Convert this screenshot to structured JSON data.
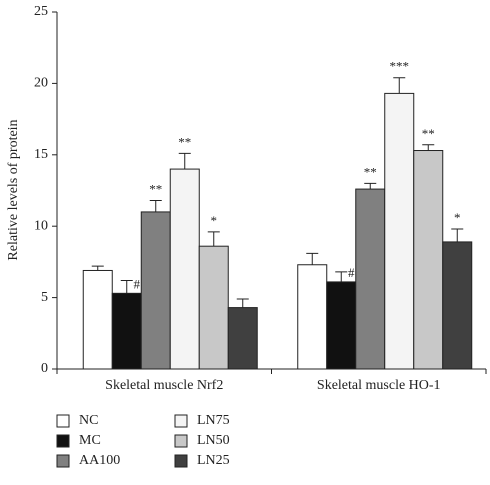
{
  "chart_data": {
    "type": "bar",
    "y_label": "Relative levels of protein",
    "categories": [
      "Skeletal muscle Nrf2",
      "Skeletal muscle HO-1"
    ],
    "ylim": [
      0,
      25
    ],
    "yticks": [
      0,
      5,
      10,
      15,
      20,
      25
    ],
    "series": [
      {
        "name": "NC",
        "color": "#ffffff",
        "values": [
          6.9,
          7.3
        ],
        "errors": [
          0.3,
          0.8
        ],
        "annotations": [
          null,
          null
        ]
      },
      {
        "name": "MC",
        "color": "#111111",
        "values": [
          5.3,
          6.1
        ],
        "errors": [
          0.9,
          0.7
        ],
        "annotations": [
          "#",
          "#"
        ]
      },
      {
        "name": "AA100",
        "color": "#808080",
        "values": [
          11.0,
          12.6
        ],
        "errors": [
          0.8,
          0.4
        ],
        "annotations": [
          "**",
          "**"
        ]
      },
      {
        "name": "LN75",
        "color": "#f4f4f4",
        "values": [
          14.0,
          19.3
        ],
        "errors": [
          1.1,
          1.1
        ],
        "annotations": [
          "**",
          "***"
        ]
      },
      {
        "name": "LN50",
        "color": "#c8c8c8",
        "values": [
          8.6,
          15.3
        ],
        "errors": [
          1.0,
          0.4
        ],
        "annotations": [
          "*",
          "**"
        ]
      },
      {
        "name": "LN25",
        "color": "#404040",
        "values": [
          4.3,
          8.9
        ],
        "errors": [
          0.6,
          0.9
        ],
        "annotations": [
          null,
          "*"
        ]
      }
    ]
  }
}
